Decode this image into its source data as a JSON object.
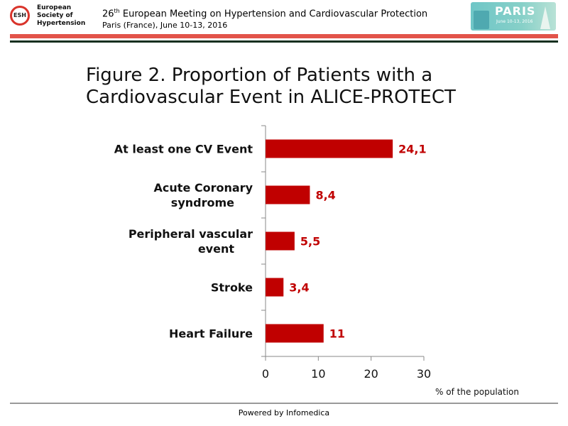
{
  "header": {
    "logo_badge": "ESH",
    "logo_text": "European\nSociety of\nHypertension",
    "meeting_ordinal": "26",
    "meeting_sup": "th",
    "meeting_title_rest": " European Meeting on Hypertension and Cardiovascular Protection",
    "meeting_sub": "Paris (France), June 10-13, 2016",
    "badge_word": "PARIS",
    "badge_dates": "June 10-13, 2016"
  },
  "footer": {
    "text": "Powered by Infomedica"
  },
  "colors": {
    "bar": "#c00000",
    "value_label": "#c00000",
    "rule_red": "#e2534a",
    "rule_dark": "#15301f"
  },
  "chart_data": {
    "type": "bar",
    "orientation": "horizontal",
    "title": "Figure 2. Proportion of Patients with a Cardiovascular Event in ALICE-PROTECT",
    "categories": [
      [
        "At least one CV Event"
      ],
      [
        "Acute Coronary",
        "syndrome"
      ],
      [
        "Peripheral vascular",
        "event"
      ],
      [
        "Stroke"
      ],
      [
        "Heart Failure"
      ]
    ],
    "values": [
      24.1,
      8.4,
      5.5,
      3.4,
      11
    ],
    "value_labels": [
      "24,1",
      "8,4",
      "5,5",
      "3,4",
      "11"
    ],
    "xlabel": "% of the population",
    "xlim": [
      0,
      30
    ],
    "xticks": [
      0,
      10,
      20,
      30
    ],
    "grid": false,
    "legend": "none"
  }
}
